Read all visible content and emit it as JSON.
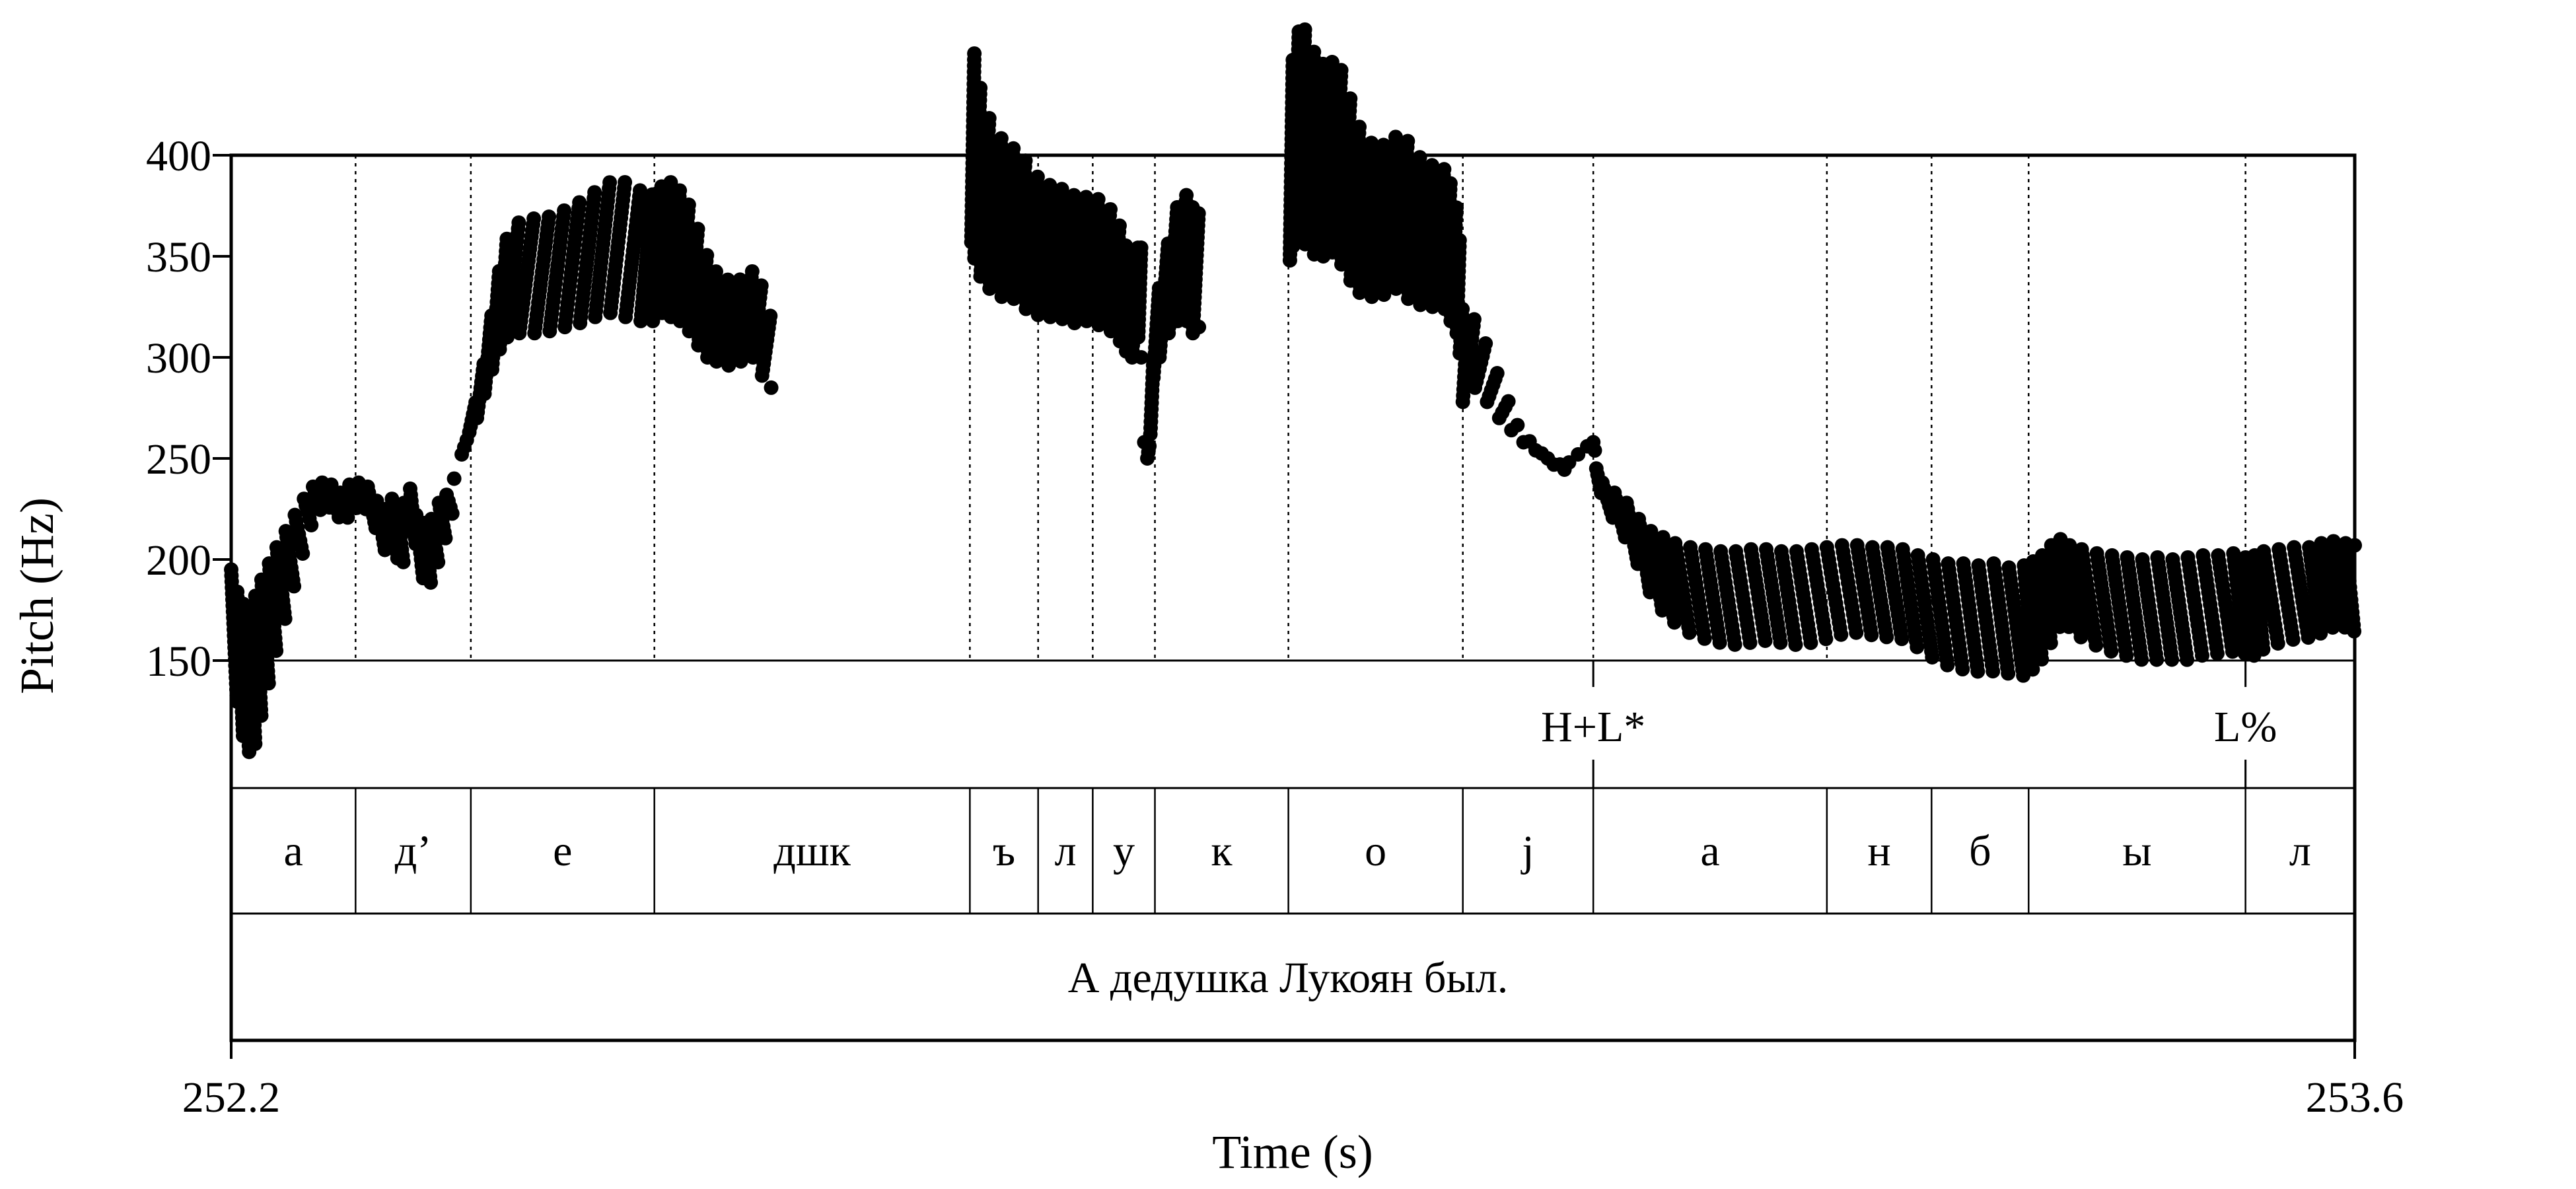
{
  "chart_data": {
    "type": "scatter",
    "ylabel": "Pitch (Hz)",
    "xlabel": "Time (s)",
    "xlim": [
      252.2,
      253.6
    ],
    "ylim": [
      150,
      400
    ],
    "yticks": [
      "150",
      "200",
      "250",
      "300",
      "350",
      "400"
    ],
    "xticks": [
      "252.2",
      "253.6"
    ],
    "grid": false,
    "segment_boundaries": [
      252.282,
      252.358,
      252.479,
      252.687,
      252.732,
      252.768,
      252.809,
      252.897,
      253.012,
      253.098,
      253.252,
      253.321,
      253.385,
      253.528
    ],
    "tone_tier": [
      {
        "label": "H+L*",
        "time": 253.098
      },
      {
        "label": "L%",
        "time": 253.528
      }
    ],
    "segments": [
      {
        "label": "а",
        "start": 252.2,
        "end": 252.282
      },
      {
        "label": "д’",
        "start": 252.282,
        "end": 252.358
      },
      {
        "label": "е",
        "start": 252.358,
        "end": 252.479
      },
      {
        "label": "дшк",
        "start": 252.479,
        "end": 252.687
      },
      {
        "label": "ъ",
        "start": 252.687,
        "end": 252.732
      },
      {
        "label": "л",
        "start": 252.732,
        "end": 252.768
      },
      {
        "label": "у",
        "start": 252.768,
        "end": 252.809
      },
      {
        "label": "к",
        "start": 252.809,
        "end": 252.897
      },
      {
        "label": "о",
        "start": 252.897,
        "end": 253.012
      },
      {
        "label": "j",
        "start": 253.012,
        "end": 253.098
      },
      {
        "label": "а",
        "start": 253.098,
        "end": 253.252
      },
      {
        "label": "н",
        "start": 253.252,
        "end": 253.321
      },
      {
        "label": "б",
        "start": 253.321,
        "end": 253.385
      },
      {
        "label": "ы",
        "start": 253.385,
        "end": 253.528
      },
      {
        "label": "л",
        "start": 253.528,
        "end": 253.6
      }
    ],
    "sentence": "А дедушка Лукоян был.",
    "series": [
      {
        "points": [
          [
            252.2,
            195
          ],
          [
            252.204,
            184
          ],
          [
            252.208,
            178
          ],
          [
            252.212,
            176
          ],
          [
            252.216,
            182
          ],
          [
            252.22,
            190
          ],
          [
            252.225,
            198
          ],
          [
            252.23,
            206
          ],
          [
            252.236,
            214
          ],
          [
            252.242,
            222
          ],
          [
            252.248,
            230
          ],
          [
            252.254,
            236
          ],
          [
            252.26,
            238
          ],
          [
            252.266,
            237
          ],
          [
            252.272,
            233
          ],
          [
            252.278,
            237
          ],
          [
            252.284,
            238
          ],
          [
            252.29,
            236
          ],
          [
            252.296,
            229
          ],
          [
            252.302,
            225
          ],
          [
            252.306,
            230
          ],
          [
            252.31,
            220
          ],
          [
            252.314,
            228
          ],
          [
            252.318,
            235
          ],
          [
            252.322,
            222
          ],
          [
            252.327,
            218
          ],
          [
            252.332,
            220
          ],
          [
            252.337,
            228
          ],
          [
            252.342,
            232
          ],
          [
            252.347,
            240
          ],
          [
            252.352,
            252
          ],
          [
            252.357,
            263
          ],
          [
            252.362,
            270
          ],
          [
            252.367,
            282
          ],
          [
            252.372,
            294
          ],
          [
            252.377,
            304
          ],
          [
            252.382,
            310
          ],
          [
            252.39,
            312
          ],
          [
            252.4,
            312
          ],
          [
            252.41,
            313
          ],
          [
            252.42,
            315
          ],
          [
            252.43,
            317
          ],
          [
            252.44,
            320
          ],
          [
            252.45,
            322
          ],
          [
            252.46,
            320
          ],
          [
            252.47,
            318
          ],
          [
            252.478,
            318
          ],
          [
            252.484,
            322
          ],
          [
            252.49,
            320
          ],
          [
            252.496,
            318
          ],
          [
            252.502,
            313
          ],
          [
            252.508,
            306
          ],
          [
            252.514,
            300
          ],
          [
            252.52,
            298
          ],
          [
            252.528,
            296
          ],
          [
            252.536,
            298
          ],
          [
            252.544,
            300
          ],
          [
            252.55,
            291
          ],
          [
            252.556,
            285
          ]
        ]
      },
      {
        "points": [
          [
            252.688,
            357
          ],
          [
            252.69,
            349
          ],
          [
            252.694,
            340
          ],
          [
            252.7,
            334
          ],
          [
            252.708,
            330
          ],
          [
            252.716,
            329
          ],
          [
            252.724,
            324
          ],
          [
            252.732,
            321
          ],
          [
            252.74,
            320
          ],
          [
            252.748,
            319
          ],
          [
            252.756,
            317
          ],
          [
            252.764,
            318
          ],
          [
            252.772,
            316
          ],
          [
            252.78,
            313
          ],
          [
            252.786,
            308
          ],
          [
            252.79,
            303
          ],
          [
            252.794,
            300
          ],
          [
            252.798,
            310
          ],
          [
            252.8,
            300
          ],
          [
            252.802,
            258
          ],
          [
            252.804,
            250
          ],
          [
            252.806,
            262
          ],
          [
            252.808,
            290
          ],
          [
            252.812,
            300
          ],
          [
            252.818,
            312
          ],
          [
            252.824,
            318
          ],
          [
            252.83,
            318
          ],
          [
            252.834,
            312
          ],
          [
            252.838,
            315
          ]
        ]
      },
      {
        "points": [
          [
            252.898,
            348
          ],
          [
            252.9,
            355
          ],
          [
            252.904,
            362
          ],
          [
            252.908,
            356
          ],
          [
            252.914,
            351
          ],
          [
            252.92,
            350
          ],
          [
            252.926,
            352
          ],
          [
            252.932,
            346
          ],
          [
            252.938,
            338
          ],
          [
            252.944,
            332
          ],
          [
            252.952,
            330
          ],
          [
            252.96,
            331
          ],
          [
            252.968,
            334
          ],
          [
            252.976,
            329
          ],
          [
            252.984,
            326
          ],
          [
            252.992,
            325
          ],
          [
            253.0,
            324
          ],
          [
            253.004,
            318
          ],
          [
            253.008,
            312
          ],
          [
            253.01,
            302
          ],
          [
            253.012,
            278
          ],
          [
            253.015,
            290
          ],
          [
            253.02,
            285
          ],
          [
            253.028,
            278
          ],
          [
            253.036,
            270
          ],
          [
            253.044,
            264
          ],
          [
            253.052,
            258
          ],
          [
            253.06,
            254
          ],
          [
            253.068,
            250
          ],
          [
            253.076,
            247
          ],
          [
            253.082,
            248
          ],
          [
            253.088,
            252
          ],
          [
            253.094,
            256
          ],
          [
            253.098,
            258
          ],
          [
            253.1,
            245
          ],
          [
            253.104,
            238
          ],
          [
            253.112,
            233
          ],
          [
            253.12,
            228
          ],
          [
            253.128,
            220
          ],
          [
            253.136,
            214
          ],
          [
            253.144,
            211
          ],
          [
            253.152,
            208
          ],
          [
            253.162,
            206
          ],
          [
            253.172,
            205
          ],
          [
            253.182,
            204
          ],
          [
            253.192,
            204
          ],
          [
            253.202,
            205
          ],
          [
            253.212,
            205
          ],
          [
            253.222,
            204
          ],
          [
            253.232,
            204
          ],
          [
            253.242,
            205
          ],
          [
            253.252,
            206
          ],
          [
            253.262,
            207
          ],
          [
            253.272,
            207
          ],
          [
            253.282,
            206
          ],
          [
            253.292,
            206
          ],
          [
            253.302,
            205
          ],
          [
            253.312,
            202
          ],
          [
            253.322,
            200
          ],
          [
            253.332,
            198
          ],
          [
            253.342,
            198
          ],
          [
            253.352,
            197
          ],
          [
            253.362,
            198
          ],
          [
            253.372,
            196
          ],
          [
            253.382,
            197
          ],
          [
            253.388,
            199
          ],
          [
            253.394,
            202
          ],
          [
            253.4,
            207
          ],
          [
            253.406,
            210
          ],
          [
            253.412,
            207
          ],
          [
            253.42,
            205
          ],
          [
            253.43,
            203
          ],
          [
            253.44,
            202
          ],
          [
            253.45,
            201
          ],
          [
            253.46,
            200
          ],
          [
            253.47,
            201
          ],
          [
            253.48,
            200
          ],
          [
            253.49,
            201
          ],
          [
            253.5,
            202
          ],
          [
            253.51,
            202
          ],
          [
            253.52,
            203
          ],
          [
            253.528,
            201
          ],
          [
            253.534,
            202
          ],
          [
            253.54,
            204
          ],
          [
            253.55,
            205
          ],
          [
            253.56,
            206
          ],
          [
            253.57,
            206
          ],
          [
            253.578,
            208
          ],
          [
            253.586,
            209
          ],
          [
            253.594,
            208
          ],
          [
            253.6,
            207
          ]
        ]
      }
    ]
  }
}
